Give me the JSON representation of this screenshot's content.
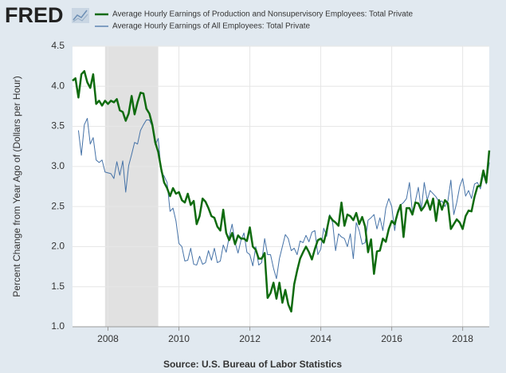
{
  "chart_data": {
    "type": "line",
    "logo": "FRED",
    "ylabel": "Percent Change from Year Ago of (Dollars per Hour)",
    "source": "Source: U.S. Bureau of Labor Statistics",
    "xlim": [
      2007,
      2018.75
    ],
    "xticks": [
      2008,
      2010,
      2012,
      2014,
      2016,
      2018
    ],
    "ylim": [
      1.0,
      4.5
    ],
    "yticks": [
      {
        "value": 1.0,
        "label": "1.0"
      },
      1.5,
      {
        "value": 2.0,
        "label": "2.0"
      },
      2.5,
      {
        "value": 3.0,
        "label": "3.0"
      },
      3.5,
      {
        "value": 4.0,
        "label": "4.0"
      },
      4.5
    ],
    "grid": true,
    "shaded_ranges": [
      [
        2007.917,
        2009.417
      ]
    ],
    "x": [
      2007.0,
      2007.083,
      2007.167,
      2007.25,
      2007.333,
      2007.417,
      2007.5,
      2007.583,
      2007.667,
      2007.75,
      2007.833,
      2007.917,
      2008.0,
      2008.083,
      2008.167,
      2008.25,
      2008.333,
      2008.417,
      2008.5,
      2008.583,
      2008.667,
      2008.75,
      2008.833,
      2008.917,
      2009.0,
      2009.083,
      2009.167,
      2009.25,
      2009.333,
      2009.417,
      2009.5,
      2009.583,
      2009.667,
      2009.75,
      2009.833,
      2009.917,
      2010.0,
      2010.083,
      2010.167,
      2010.25,
      2010.333,
      2010.417,
      2010.5,
      2010.583,
      2010.667,
      2010.75,
      2010.833,
      2010.917,
      2011.0,
      2011.083,
      2011.167,
      2011.25,
      2011.333,
      2011.417,
      2011.5,
      2011.583,
      2011.667,
      2011.75,
      2011.833,
      2011.917,
      2012.0,
      2012.083,
      2012.167,
      2012.25,
      2012.333,
      2012.417,
      2012.5,
      2012.583,
      2012.667,
      2012.75,
      2012.833,
      2012.917,
      2013.0,
      2013.083,
      2013.167,
      2013.25,
      2013.333,
      2013.417,
      2013.5,
      2013.583,
      2013.667,
      2013.75,
      2013.833,
      2013.917,
      2014.0,
      2014.083,
      2014.167,
      2014.25,
      2014.333,
      2014.417,
      2014.5,
      2014.583,
      2014.667,
      2014.75,
      2014.833,
      2014.917,
      2015.0,
      2015.083,
      2015.167,
      2015.25,
      2015.333,
      2015.417,
      2015.5,
      2015.583,
      2015.667,
      2015.75,
      2015.833,
      2015.917,
      2016.0,
      2016.083,
      2016.167,
      2016.25,
      2016.333,
      2016.417,
      2016.5,
      2016.583,
      2016.667,
      2016.75,
      2016.833,
      2016.917,
      2017.0,
      2017.083,
      2017.167,
      2017.25,
      2017.333,
      2017.417,
      2017.5,
      2017.583,
      2017.667,
      2017.75,
      2017.833,
      2017.917,
      2018.0,
      2018.083,
      2018.167,
      2018.25,
      2018.333,
      2018.417,
      2018.5,
      2018.583,
      2018.667,
      2018.75
    ],
    "series": [
      {
        "name": "Average Hourly Earnings of Production and Nonsupervisory Employees: Total Private",
        "color": "#0f6b0f",
        "width": 2.5,
        "values": [
          4.07,
          4.1,
          3.86,
          4.15,
          4.19,
          4.05,
          3.98,
          4.15,
          3.78,
          3.82,
          3.76,
          3.82,
          3.78,
          3.82,
          3.8,
          3.84,
          3.7,
          3.68,
          3.57,
          3.66,
          3.88,
          3.65,
          3.8,
          3.92,
          3.91,
          3.72,
          3.66,
          3.52,
          3.3,
          3.18,
          2.97,
          2.8,
          2.73,
          2.63,
          2.73,
          2.66,
          2.68,
          2.58,
          2.55,
          2.66,
          2.52,
          2.57,
          2.28,
          2.38,
          2.6,
          2.56,
          2.48,
          2.38,
          2.36,
          2.25,
          2.2,
          2.46,
          2.17,
          2.08,
          2.17,
          2.03,
          2.14,
          2.1,
          2.1,
          2.07,
          2.24,
          2.0,
          1.96,
          1.85,
          1.85,
          1.92,
          1.36,
          1.42,
          1.55,
          1.35,
          1.55,
          1.3,
          1.46,
          1.28,
          1.19,
          1.53,
          1.7,
          1.85,
          1.93,
          2.0,
          1.93,
          1.84,
          1.97,
          2.08,
          2.1,
          2.05,
          2.2,
          2.38,
          2.33,
          2.3,
          2.26,
          2.55,
          2.26,
          2.4,
          2.38,
          2.33,
          2.42,
          2.28,
          2.37,
          2.25,
          1.93,
          2.09,
          1.66,
          1.94,
          1.95,
          2.1,
          2.06,
          2.22,
          2.32,
          2.28,
          2.42,
          2.52,
          2.12,
          2.48,
          2.48,
          2.4,
          2.55,
          2.54,
          2.45,
          2.5,
          2.58,
          2.46,
          2.6,
          2.32,
          2.58,
          2.46,
          2.58,
          2.54,
          2.22,
          2.28,
          2.34,
          2.3,
          2.22,
          2.38,
          2.45,
          2.44,
          2.62,
          2.75,
          2.76,
          2.95,
          2.8,
          3.2
        ]
      },
      {
        "name": "Average Hourly Earnings of All Employees: Total Private",
        "color": "#4572a7",
        "width": 1,
        "values": [
          null,
          null,
          3.45,
          3.14,
          3.52,
          3.6,
          3.28,
          3.36,
          3.08,
          3.05,
          3.08,
          2.93,
          2.92,
          2.91,
          2.85,
          3.06,
          2.89,
          3.07,
          2.68,
          3.01,
          3.15,
          3.3,
          3.28,
          3.45,
          3.52,
          3.58,
          3.58,
          3.5,
          3.27,
          3.35,
          2.93,
          2.88,
          2.8,
          2.44,
          2.48,
          2.32,
          2.04,
          2.0,
          1.82,
          1.83,
          1.98,
          1.78,
          1.77,
          1.88,
          1.78,
          1.8,
          1.95,
          1.83,
          1.98,
          1.8,
          1.82,
          2.02,
          1.93,
          2.12,
          2.28,
          2.05,
          1.92,
          2.08,
          2.17,
          1.93,
          1.9,
          1.76,
          2.0,
          1.77,
          1.8,
          2.1,
          1.9,
          1.9,
          1.73,
          1.6,
          1.85,
          2.0,
          2.15,
          2.1,
          1.95,
          1.98,
          1.9,
          2.07,
          2.05,
          2.14,
          2.06,
          2.18,
          2.2,
          1.9,
          1.97,
          2.23,
          2.13,
          2.4,
          2.3,
          1.95,
          2.16,
          2.12,
          2.1,
          2.0,
          2.16,
          1.85,
          2.3,
          2.2,
          2.03,
          2.05,
          2.33,
          2.36,
          2.4,
          2.22,
          2.36,
          2.2,
          2.48,
          2.6,
          2.5,
          2.2,
          2.45,
          2.52,
          2.55,
          2.6,
          2.8,
          2.43,
          2.57,
          2.74,
          2.46,
          2.8,
          2.58,
          2.7,
          2.66,
          2.62,
          2.56,
          2.57,
          2.5,
          2.57,
          2.83,
          2.4,
          2.55,
          2.75,
          2.85,
          2.63,
          2.7,
          2.6,
          2.78,
          2.8,
          2.72,
          2.9,
          2.78,
          3.05
        ]
      }
    ]
  }
}
